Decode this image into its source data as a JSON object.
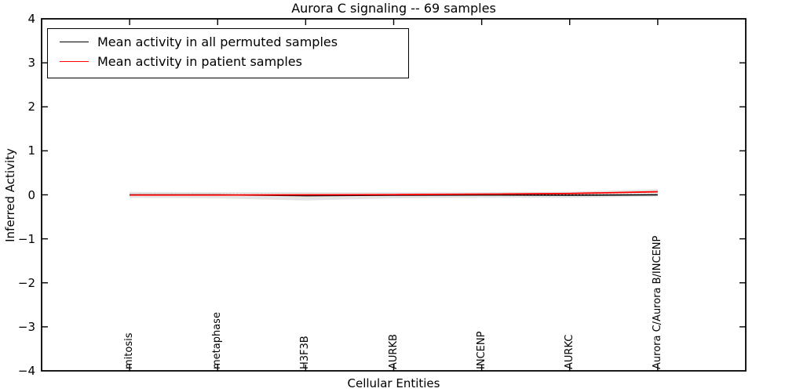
{
  "title": "Aurora C signaling -- 69 samples",
  "chart_data": {
    "type": "line",
    "title": "Aurora C signaling -- 69 samples",
    "xlabel": "Cellular Entities",
    "ylabel": "Inferred Activity",
    "ylim": [
      -4,
      4
    ],
    "xlim": [
      0,
      8
    ],
    "grid": false,
    "legend_position": "upper left",
    "yticks": [
      4,
      3,
      2,
      1,
      0,
      -1,
      -2,
      -3,
      -4
    ],
    "ytick_labels": [
      "4",
      "3",
      "2",
      "1",
      "0",
      "−1",
      "−2",
      "−3",
      "−4"
    ],
    "categories": [
      "mitosis",
      "metaphase",
      "H3F3B",
      "AURKB",
      "INCENP",
      "AURKC",
      "Aurora C/Aurora B/INCENP"
    ],
    "x": [
      1,
      2,
      3,
      4,
      5,
      6,
      7
    ],
    "series": [
      {
        "name": "Mean activity in all permuted samples",
        "color": "#000000",
        "values": [
          0.0,
          0.0,
          -0.02,
          -0.01,
          -0.005,
          -0.01,
          0.0
        ]
      },
      {
        "name": "Mean activity in patient samples",
        "color": "#ff0000",
        "values": [
          -0.005,
          -0.005,
          0.0,
          0.005,
          0.015,
          0.03,
          0.07
        ]
      }
    ],
    "band": {
      "name": "permuted activity range",
      "color": "rgba(110,110,110,0.18)",
      "upper": [
        0.07,
        0.06,
        0.06,
        0.06,
        0.06,
        0.07,
        0.13
      ],
      "lower": [
        -0.07,
        -0.08,
        -0.13,
        -0.08,
        -0.07,
        -0.07,
        -0.04
      ]
    },
    "zero_line": {
      "value": 0,
      "style": "dotted",
      "color": "#000000"
    }
  }
}
